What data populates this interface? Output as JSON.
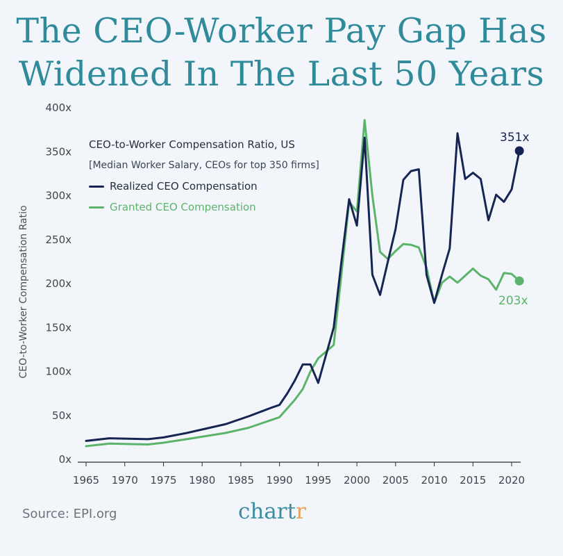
{
  "title_line1": "The CEO-Worker Pay Gap Has",
  "title_line2": "Widened In The Last 50 Years",
  "footer": {
    "source": "Source: EPI.org",
    "brand_main": "chart",
    "brand_accent": "r"
  },
  "colors": {
    "realized": "#162453",
    "granted": "#5cb36a",
    "title": "#2f8a9a",
    "background": "#f2f6fb"
  },
  "chart_data": {
    "type": "line",
    "title": "CEO-to-Worker Compensation Ratio, US",
    "subtitle": "[Median Worker Salary, CEOs for top 350 firms]",
    "xlabel": "",
    "ylabel": "CEO-to-Worker Compensation Ratio",
    "xlim": [
      1965,
      2020
    ],
    "ylim": [
      0,
      400
    ],
    "x_ticks": [
      "1965",
      "1970",
      "1975",
      "1980",
      "1985",
      "1990",
      "1995",
      "2000",
      "2005",
      "2010",
      "2015",
      "2020"
    ],
    "y_ticks": [
      "0x",
      "50x",
      "100x",
      "150x",
      "200x",
      "250x",
      "300x",
      "350x",
      "400x"
    ],
    "grid": false,
    "legend_position": "top-left",
    "end_labels": {
      "realized": "351x",
      "granted": "203x"
    },
    "series": [
      {
        "name": "Realized CEO Compensation",
        "key": "realized",
        "points": [
          [
            1965,
            21
          ],
          [
            1968,
            24
          ],
          [
            1973,
            23
          ],
          [
            1975,
            25
          ],
          [
            1978,
            30
          ],
          [
            1983,
            40
          ],
          [
            1986,
            49
          ],
          [
            1989,
            59
          ],
          [
            1990,
            62
          ],
          [
            1991,
            75
          ],
          [
            1992,
            90
          ],
          [
            1993,
            108
          ],
          [
            1994,
            108
          ],
          [
            1995,
            87
          ],
          [
            1997,
            150
          ],
          [
            1998,
            225
          ],
          [
            1999,
            296
          ],
          [
            2000,
            266
          ],
          [
            2001,
            366
          ],
          [
            2002,
            210
          ],
          [
            2003,
            187
          ],
          [
            2004,
            225
          ],
          [
            2005,
            262
          ],
          [
            2006,
            318
          ],
          [
            2007,
            328
          ],
          [
            2008,
            330
          ],
          [
            2009,
            210
          ],
          [
            2010,
            178
          ],
          [
            2011,
            210
          ],
          [
            2012,
            240
          ],
          [
            2013,
            371
          ],
          [
            2014,
            319
          ],
          [
            2015,
            326
          ],
          [
            2016,
            319
          ],
          [
            2017,
            272
          ],
          [
            2018,
            301
          ],
          [
            2019,
            293
          ],
          [
            2020,
            307
          ],
          [
            2021,
            351
          ]
        ]
      },
      {
        "name": "Granted CEO Compensation",
        "key": "granted",
        "points": [
          [
            1965,
            15
          ],
          [
            1968,
            18
          ],
          [
            1973,
            17
          ],
          [
            1975,
            19
          ],
          [
            1978,
            23
          ],
          [
            1983,
            30
          ],
          [
            1986,
            36
          ],
          [
            1989,
            45
          ],
          [
            1990,
            48
          ],
          [
            1991,
            58
          ],
          [
            1992,
            68
          ],
          [
            1993,
            80
          ],
          [
            1994,
            100
          ],
          [
            1995,
            115
          ],
          [
            1997,
            130
          ],
          [
            1998,
            210
          ],
          [
            1999,
            293
          ],
          [
            2000,
            282
          ],
          [
            2001,
            386
          ],
          [
            2002,
            300
          ],
          [
            2003,
            236
          ],
          [
            2004,
            228
          ],
          [
            2005,
            237
          ],
          [
            2006,
            245
          ],
          [
            2007,
            244
          ],
          [
            2008,
            241
          ],
          [
            2009,
            218
          ],
          [
            2010,
            178
          ],
          [
            2011,
            201
          ],
          [
            2012,
            208
          ],
          [
            2013,
            201
          ],
          [
            2014,
            209
          ],
          [
            2015,
            217
          ],
          [
            2016,
            209
          ],
          [
            2017,
            205
          ],
          [
            2018,
            193
          ],
          [
            2019,
            212
          ],
          [
            2020,
            211
          ],
          [
            2021,
            203
          ]
        ]
      }
    ]
  }
}
